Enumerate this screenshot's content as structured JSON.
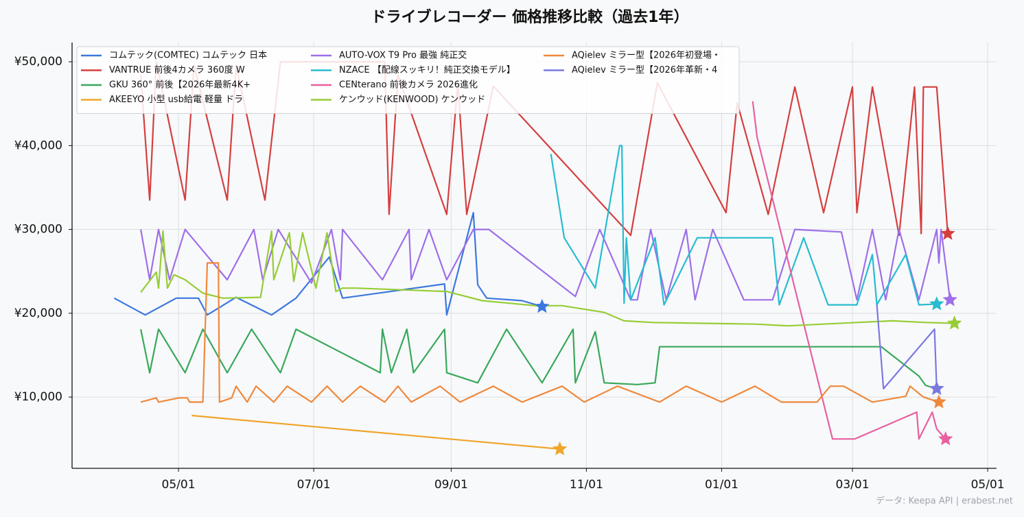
{
  "chart_data": {
    "type": "line",
    "title": "ドライブレコーダー 価格推移比較（過去1年）",
    "source": "データ: Keepa API | erabest.net",
    "xlim": [
      -18,
      399
    ],
    "xticks": [
      {
        "value": 30,
        "label": "05/01"
      },
      {
        "value": 91,
        "label": "07/01"
      },
      {
        "value": 153,
        "label": "09/01"
      },
      {
        "value": 214,
        "label": "11/01"
      },
      {
        "value": 275,
        "label": "01/01"
      },
      {
        "value": 334,
        "label": "03/01"
      },
      {
        "value": 395,
        "label": "05/01"
      }
    ],
    "ylim": [
      1500,
      52300
    ],
    "yticks": [
      {
        "value": 10000,
        "label": "¥10,000"
      },
      {
        "value": 20000,
        "label": "¥20,000"
      },
      {
        "value": 30000,
        "label": "¥30,000"
      },
      {
        "value": 40000,
        "label": "¥40,000"
      },
      {
        "value": 50000,
        "label": "¥50,000"
      }
    ],
    "grid": true,
    "legend": "upper-left",
    "end_marker": "star",
    "series": [
      {
        "name": "コムテック(COMTEC) コムテック 日本",
        "color": "#3b78de",
        "x": [
          1,
          15,
          29,
          39,
          43,
          56,
          72,
          83,
          98,
          104,
          150,
          151,
          163,
          165,
          169,
          185,
          194
        ],
        "values": [
          21800,
          19800,
          21800,
          21800,
          19800,
          21900,
          19800,
          21800,
          26700,
          21800,
          23500,
          19800,
          32000,
          23400,
          21800,
          21500,
          20800
        ]
      },
      {
        "name": "VANTRUE 前後4カメラ  360度 W",
        "color": "#d63e3e",
        "x": [
          13,
          17,
          20,
          33,
          37,
          52,
          56,
          69,
          76,
          123,
          125,
          129,
          151,
          156,
          160,
          172,
          234,
          246,
          277,
          282,
          296,
          308,
          321,
          334,
          336,
          343,
          355,
          362,
          365,
          366,
          372,
          377
        ],
        "values": [
          48400,
          33500,
          50000,
          33500,
          49600,
          33500,
          49600,
          33500,
          50000,
          50000,
          31800,
          48400,
          31800,
          47500,
          31800,
          47100,
          29300,
          47500,
          32000,
          45100,
          31800,
          47000,
          32000,
          47000,
          32000,
          47000,
          29300,
          47000,
          29500,
          47000,
          47000,
          29500
        ]
      },
      {
        "name": "GKU 360° 前後【2026年最新4K+",
        "color": "#38a85a",
        "x": [
          13,
          17,
          21,
          33,
          41,
          52,
          63,
          76,
          83,
          121,
          122,
          126,
          133,
          136,
          150,
          151,
          165,
          178,
          194,
          208,
          209,
          218,
          222,
          237,
          245,
          247,
          347,
          364,
          367,
          372
        ],
        "values": [
          18100,
          12900,
          18100,
          12900,
          18100,
          12900,
          18100,
          12900,
          18100,
          12900,
          18100,
          12900,
          18100,
          12900,
          18100,
          12900,
          11700,
          18100,
          11700,
          18100,
          11700,
          17800,
          11700,
          11500,
          11700,
          16000,
          16000,
          12500,
          11400,
          11000
        ]
      },
      {
        "name": "AKEEYO  小型 usb給電 軽量 ドラ",
        "color": "#f0a52c",
        "x": [
          36,
          202
        ],
        "values": [
          7800,
          3800
        ]
      },
      {
        "name": "AUTO-VOX T9 Pro 最強 純正交",
        "color": "#9d6fe8",
        "x": [
          13,
          17,
          21,
          26,
          33,
          52,
          64,
          68,
          75,
          90,
          99,
          103,
          104,
          122,
          134,
          135,
          143,
          151,
          163,
          170,
          209,
          220,
          234,
          237,
          243,
          250,
          259,
          263,
          271,
          285,
          298,
          308,
          329,
          336,
          343,
          349,
          355,
          364,
          372,
          373,
          374,
          378
        ],
        "values": [
          30000,
          24000,
          30000,
          24000,
          30000,
          24000,
          30000,
          24000,
          30000,
          23600,
          30000,
          24000,
          30000,
          24000,
          30000,
          24000,
          30000,
          24000,
          30000,
          30000,
          22000,
          30000,
          21600,
          21600,
          30000,
          21600,
          30000,
          21600,
          30000,
          21600,
          21600,
          30000,
          29700,
          21600,
          30000,
          21600,
          30000,
          21600,
          30000,
          26000,
          30000,
          21600
        ]
      },
      {
        "name": "NZACE 【配線スッキリ！純正交換モデル】",
        "color": "#26bcd0",
        "x": [
          198,
          204,
          218,
          229,
          230,
          231,
          232,
          234,
          245,
          249,
          264,
          298,
          301,
          312,
          323,
          336,
          343,
          345,
          358,
          364,
          372
        ],
        "values": [
          39000,
          29000,
          23000,
          40000,
          40000,
          21200,
          29000,
          21600,
          29000,
          21000,
          29000,
          29000,
          21000,
          29000,
          21000,
          21000,
          27000,
          21000,
          27000,
          21000,
          21100
        ]
      },
      {
        "name": "CENterano 前後カメラ 2026進化",
        "color": "#e8609f",
        "x": [
          289,
          291,
          325,
          335,
          363,
          364,
          370,
          372,
          376
        ],
        "values": [
          45300,
          41000,
          5000,
          5000,
          8200,
          5000,
          8200,
          6200,
          5000
        ]
      },
      {
        "name": "ケンウッド(KENWOOD) ケンウッド",
        "color": "#96cd34",
        "x": [
          13,
          20,
          21,
          23,
          25,
          28,
          33,
          41,
          50,
          67,
          72,
          73,
          80,
          82,
          86,
          92,
          97,
          101,
          104,
          110,
          151,
          167,
          191,
          203,
          222,
          231,
          244,
          290,
          305,
          336,
          352,
          367,
          380
        ],
        "values": [
          22500,
          24900,
          23000,
          29800,
          23000,
          24600,
          24000,
          22400,
          21800,
          21900,
          29800,
          24000,
          29600,
          23800,
          29600,
          23000,
          29600,
          22600,
          23000,
          23000,
          22600,
          21500,
          20900,
          20900,
          20100,
          19100,
          18900,
          18700,
          18500,
          18900,
          19100,
          18900,
          18800
        ]
      },
      {
        "name": "AQielev ミラー型【2026年初登場・",
        "color": "#f0883a",
        "x": [
          13,
          20,
          21,
          30,
          34,
          35,
          41,
          43,
          48,
          48.5,
          54,
          56,
          61,
          65,
          73,
          79,
          90,
          97,
          104,
          112,
          123,
          129,
          135,
          148,
          157,
          172,
          185,
          203,
          213,
          228,
          247,
          259,
          275,
          290,
          302,
          318,
          324,
          330,
          343,
          358,
          360,
          366,
          373
        ],
        "values": [
          9400,
          9900,
          9400,
          9900,
          9900,
          9400,
          9400,
          26000,
          26000,
          9400,
          9900,
          11300,
          9400,
          11300,
          9400,
          11300,
          9400,
          11300,
          9400,
          11300,
          9400,
          11300,
          9400,
          11300,
          9400,
          11300,
          9400,
          11300,
          9400,
          11300,
          9400,
          11300,
          9400,
          11300,
          9400,
          9400,
          11300,
          11300,
          9400,
          10100,
          11300,
          10000,
          9400
        ]
      },
      {
        "name": "AQielev ミラー型【2026年革新・4",
        "color": "#7a78e0",
        "x": [
          345,
          348,
          371,
          372
        ],
        "values": [
          21000,
          11000,
          18100,
          11000
        ]
      }
    ]
  }
}
